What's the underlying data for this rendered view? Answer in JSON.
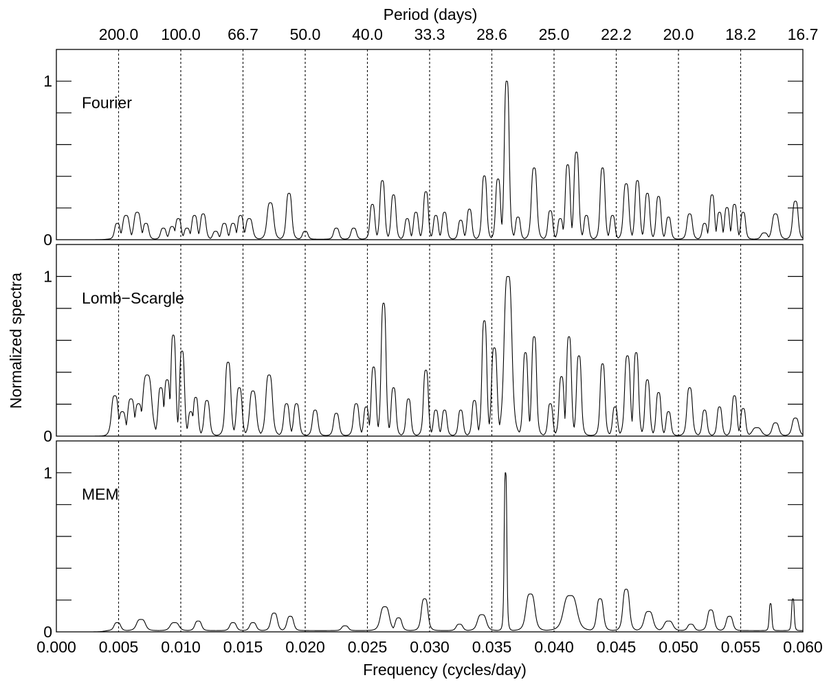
{
  "chart_data": {
    "type": "line",
    "xlabel": "Frequency (cycles/day)",
    "ylabel": "Normalized spectra",
    "top_axis_title": "Period (days)",
    "xlim": [
      0.0,
      0.06
    ],
    "ylim": [
      0,
      1.2
    ],
    "x_ticks": [
      "0.000",
      "0.005",
      "0.010",
      "0.015",
      "0.020",
      "0.025",
      "0.030",
      "0.035",
      "0.040",
      "0.045",
      "0.050",
      "0.055",
      "0.060"
    ],
    "top_tick_labels": [
      "200.0",
      "100.0",
      "66.7",
      "50.0",
      "40.0",
      "33.3",
      "28.6",
      "25.0",
      "22.2",
      "20.0",
      "18.2",
      "16.7"
    ],
    "dashed_gridlines_x": [
      0.005,
      0.01,
      0.015,
      0.02,
      0.025,
      0.03,
      0.035,
      0.04,
      0.045,
      0.05,
      0.055
    ],
    "y_tick_labels": [
      "0",
      "1"
    ],
    "panels": [
      {
        "name": "Fourier",
        "baseline": 0.003,
        "peaks": [
          [
            0.0049,
            0.1,
            0.00025
          ],
          [
            0.0056,
            0.15,
            0.0003
          ],
          [
            0.0065,
            0.17,
            0.0003
          ],
          [
            0.0072,
            0.1,
            0.00025
          ],
          [
            0.0086,
            0.07,
            0.00025
          ],
          [
            0.0093,
            0.08,
            0.00025
          ],
          [
            0.0098,
            0.13,
            0.00025
          ],
          [
            0.0105,
            0.07,
            0.00025
          ],
          [
            0.0111,
            0.15,
            0.00025
          ],
          [
            0.0118,
            0.16,
            0.00025
          ],
          [
            0.0128,
            0.05,
            0.00025
          ],
          [
            0.0135,
            0.1,
            0.00025
          ],
          [
            0.0142,
            0.1,
            0.00025
          ],
          [
            0.0148,
            0.15,
            0.00025
          ],
          [
            0.0155,
            0.13,
            0.0003
          ],
          [
            0.0172,
            0.23,
            0.0003
          ],
          [
            0.0187,
            0.29,
            0.00025
          ],
          [
            0.02,
            0.05,
            0.00025
          ],
          [
            0.0225,
            0.07,
            0.00025
          ],
          [
            0.0239,
            0.07,
            0.00025
          ],
          [
            0.0254,
            0.22,
            0.00022
          ],
          [
            0.0262,
            0.37,
            0.00022
          ],
          [
            0.0271,
            0.28,
            0.00022
          ],
          [
            0.0282,
            0.13,
            0.00022
          ],
          [
            0.0289,
            0.17,
            0.00022
          ],
          [
            0.0297,
            0.3,
            0.00022
          ],
          [
            0.0305,
            0.15,
            0.00022
          ],
          [
            0.0312,
            0.17,
            0.00022
          ],
          [
            0.0325,
            0.12,
            0.00022
          ],
          [
            0.0332,
            0.19,
            0.00022
          ],
          [
            0.0344,
            0.4,
            0.00022
          ],
          [
            0.0355,
            0.38,
            0.00022
          ],
          [
            0.0362,
            1.0,
            0.00022
          ],
          [
            0.0371,
            0.14,
            0.00022
          ],
          [
            0.0384,
            0.45,
            0.00025
          ],
          [
            0.0397,
            0.18,
            0.00022
          ],
          [
            0.0405,
            0.13,
            0.00022
          ],
          [
            0.0411,
            0.47,
            0.00022
          ],
          [
            0.0418,
            0.55,
            0.00022
          ],
          [
            0.0426,
            0.15,
            0.00022
          ],
          [
            0.0439,
            0.45,
            0.00022
          ],
          [
            0.0447,
            0.15,
            0.00022
          ],
          [
            0.0458,
            0.35,
            0.00025
          ],
          [
            0.0467,
            0.37,
            0.00022
          ],
          [
            0.0475,
            0.29,
            0.00022
          ],
          [
            0.0484,
            0.27,
            0.00022
          ],
          [
            0.0492,
            0.14,
            0.00022
          ],
          [
            0.0509,
            0.16,
            0.00025
          ],
          [
            0.0521,
            0.1,
            0.00022
          ],
          [
            0.0527,
            0.28,
            0.00022
          ],
          [
            0.0533,
            0.17,
            0.00022
          ],
          [
            0.0539,
            0.2,
            0.00022
          ],
          [
            0.0545,
            0.22,
            0.00022
          ],
          [
            0.0552,
            0.17,
            0.00022
          ],
          [
            0.0569,
            0.04,
            0.0003
          ],
          [
            0.0578,
            0.16,
            0.0003
          ],
          [
            0.0594,
            0.24,
            0.00025
          ]
        ]
      },
      {
        "name": "Lomb−Scargle",
        "baseline": 0.003,
        "peaks": [
          [
            0.0047,
            0.25,
            0.0003
          ],
          [
            0.0053,
            0.15,
            0.0003
          ],
          [
            0.006,
            0.23,
            0.0003
          ],
          [
            0.0066,
            0.2,
            0.0003
          ],
          [
            0.0073,
            0.38,
            0.0004
          ],
          [
            0.0084,
            0.3,
            0.00025
          ],
          [
            0.0089,
            0.35,
            0.00025
          ],
          [
            0.0094,
            0.63,
            0.00022
          ],
          [
            0.0101,
            0.53,
            0.00022
          ],
          [
            0.0108,
            0.15,
            0.00022
          ],
          [
            0.0112,
            0.24,
            0.00022
          ],
          [
            0.0121,
            0.22,
            0.00025
          ],
          [
            0.0138,
            0.46,
            0.00025
          ],
          [
            0.0147,
            0.3,
            0.00025
          ],
          [
            0.0158,
            0.28,
            0.0003
          ],
          [
            0.0171,
            0.38,
            0.0003
          ],
          [
            0.0185,
            0.2,
            0.00025
          ],
          [
            0.0193,
            0.2,
            0.00025
          ],
          [
            0.0208,
            0.16,
            0.00025
          ],
          [
            0.0225,
            0.14,
            0.00025
          ],
          [
            0.0241,
            0.2,
            0.00025
          ],
          [
            0.0249,
            0.18,
            0.00022
          ],
          [
            0.0255,
            0.43,
            0.00022
          ],
          [
            0.0263,
            0.83,
            0.00022
          ],
          [
            0.0271,
            0.3,
            0.00022
          ],
          [
            0.0283,
            0.23,
            0.00022
          ],
          [
            0.0297,
            0.41,
            0.00022
          ],
          [
            0.0305,
            0.16,
            0.00022
          ],
          [
            0.0312,
            0.16,
            0.00022
          ],
          [
            0.0325,
            0.16,
            0.00022
          ],
          [
            0.0336,
            0.22,
            0.00022
          ],
          [
            0.0344,
            0.72,
            0.00022
          ],
          [
            0.0352,
            0.55,
            0.00025
          ],
          [
            0.0363,
            1.0,
            0.00035
          ],
          [
            0.0377,
            0.52,
            0.00022
          ],
          [
            0.0384,
            0.62,
            0.00022
          ],
          [
            0.0397,
            0.2,
            0.00022
          ],
          [
            0.0406,
            0.37,
            0.00022
          ],
          [
            0.0412,
            0.62,
            0.00022
          ],
          [
            0.042,
            0.5,
            0.00022
          ],
          [
            0.0439,
            0.45,
            0.00022
          ],
          [
            0.0449,
            0.18,
            0.00022
          ],
          [
            0.0459,
            0.5,
            0.00025
          ],
          [
            0.0466,
            0.52,
            0.00022
          ],
          [
            0.0475,
            0.35,
            0.00022
          ],
          [
            0.0484,
            0.27,
            0.00022
          ],
          [
            0.0492,
            0.15,
            0.00022
          ],
          [
            0.0509,
            0.3,
            0.00025
          ],
          [
            0.0521,
            0.16,
            0.00022
          ],
          [
            0.0533,
            0.18,
            0.00022
          ],
          [
            0.0545,
            0.25,
            0.00022
          ],
          [
            0.0552,
            0.17,
            0.00022
          ],
          [
            0.0563,
            0.05,
            0.0004
          ],
          [
            0.0578,
            0.08,
            0.0003
          ],
          [
            0.0594,
            0.11,
            0.0003
          ]
        ]
      },
      {
        "name": "MEM",
        "baseline": 0.008,
        "peaks": [
          [
            0.0049,
            0.05,
            0.0003
          ],
          [
            0.0068,
            0.07,
            0.0004
          ],
          [
            0.0095,
            0.05,
            0.0004
          ],
          [
            0.0114,
            0.06,
            0.0003
          ],
          [
            0.0142,
            0.05,
            0.0003
          ],
          [
            0.0158,
            0.05,
            0.0003
          ],
          [
            0.0175,
            0.11,
            0.0003
          ],
          [
            0.0188,
            0.09,
            0.0003
          ],
          [
            0.0232,
            0.03,
            0.0003
          ],
          [
            0.0264,
            0.15,
            0.0004
          ],
          [
            0.0275,
            0.08,
            0.0003
          ],
          [
            0.0296,
            0.2,
            0.0003
          ],
          [
            0.0324,
            0.04,
            0.0003
          ],
          [
            0.0342,
            0.1,
            0.0004
          ],
          [
            0.0361,
            1.0,
            0.00012
          ],
          [
            0.0381,
            0.23,
            0.0004
          ],
          [
            0.0413,
            0.22,
            0.0006
          ],
          [
            0.0437,
            0.2,
            0.0003
          ],
          [
            0.0458,
            0.26,
            0.0003
          ],
          [
            0.0476,
            0.12,
            0.0004
          ],
          [
            0.0492,
            0.06,
            0.0004
          ],
          [
            0.051,
            0.04,
            0.0003
          ],
          [
            0.0526,
            0.13,
            0.0003
          ],
          [
            0.0541,
            0.09,
            0.0003
          ],
          [
            0.0574,
            0.17,
            0.00012
          ],
          [
            0.0592,
            0.2,
            0.00012
          ]
        ]
      }
    ]
  }
}
